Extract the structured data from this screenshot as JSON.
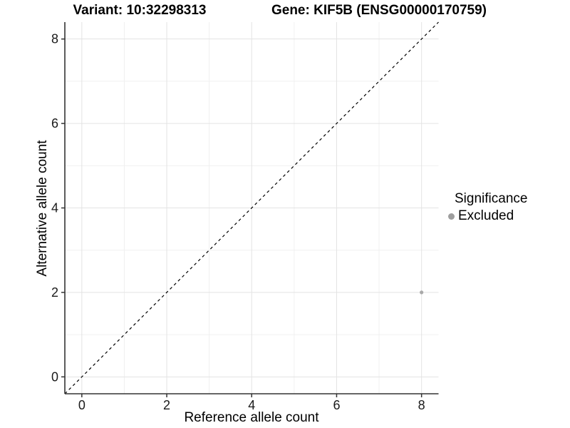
{
  "chart_data": {
    "type": "scatter",
    "title_left": "Variant: 10:32298313",
    "title_right": "Gene: KIF5B (ENSG00000170759)",
    "xlabel": "Reference allele count",
    "ylabel": "Alternative allele count",
    "xlim": [
      -0.4,
      8.4
    ],
    "ylim": [
      -0.4,
      8.4
    ],
    "xticks": [
      0,
      2,
      4,
      6,
      8
    ],
    "yticks": [
      0,
      2,
      4,
      6,
      8
    ],
    "minor_gridlines_x": [
      1,
      3,
      5,
      7
    ],
    "minor_gridlines_y": [
      1,
      3,
      5,
      7
    ],
    "grid": true,
    "legend_position": "right",
    "identity_line": {
      "style": "dashed",
      "slope": 1,
      "intercept": 0,
      "color": "#000000"
    },
    "series": [
      {
        "name": "Excluded",
        "color": "#a9a9a9",
        "points": [
          {
            "x": 8,
            "y": 2
          }
        ]
      }
    ],
    "legend": {
      "title": "Significance",
      "items": [
        {
          "label": "Excluded",
          "color": "#9e9e9e"
        }
      ]
    }
  },
  "colors": {
    "background": "#ffffff",
    "gridline_major": "#e3e3e3",
    "gridline_minor": "#f0f0f0",
    "axis_line": "#333333",
    "tick_label": "#1a1a1a"
  }
}
